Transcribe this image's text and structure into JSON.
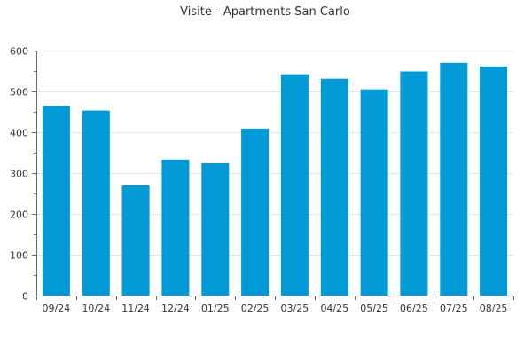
{
  "chart_data": {
    "type": "bar",
    "title": "Visite - Apartments San Carlo",
    "xlabel": "",
    "ylabel": "",
    "categories": [
      "09/24",
      "10/24",
      "11/24",
      "12/24",
      "01/25",
      "02/25",
      "03/25",
      "04/25",
      "05/25",
      "06/25",
      "07/25",
      "08/25"
    ],
    "values": [
      464,
      453,
      270,
      333,
      324,
      409,
      542,
      531,
      505,
      549,
      570,
      561
    ],
    "ylim": [
      0,
      600
    ],
    "yticks": [
      0,
      100,
      200,
      300,
      400,
      500,
      600
    ],
    "grid": true,
    "legend": "none",
    "bar_color": "#0199d6",
    "grid_color": "#e6e6e6",
    "axis_color": "#666666"
  }
}
